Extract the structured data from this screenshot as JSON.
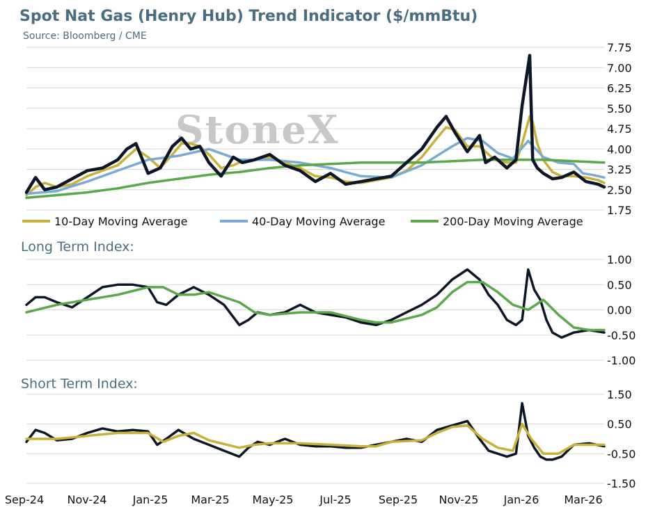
{
  "header": {
    "title": "Spot Nat Gas (Henry Hub) Trend Indicator ($/mmBtu)",
    "source": "Source: Bloomberg / CME",
    "watermark": "StoneX"
  },
  "colors": {
    "price": "#0d1626",
    "ma10": "#c8b03a",
    "ma40": "#7aaad2",
    "ma200": "#5aa84a",
    "grid": "#d9d9d9",
    "title": "#4a6d80"
  },
  "x_axis": {
    "labels": [
      "Sep-24",
      "Nov-24",
      "Jan-25",
      "Mar-25",
      "May-25",
      "Jul-25",
      "Sep-25",
      "Nov-25",
      "Jan-26",
      "Mar-26"
    ]
  },
  "chart_data": [
    {
      "type": "line",
      "title": "Spot Nat Gas (Henry Hub) Trend Indicator ($/mmBtu)",
      "ylim": [
        1.75,
        7.75
      ],
      "yticks": [
        "7.75",
        "7.00",
        "6.25",
        "5.50",
        "4.75",
        "4.00",
        "3.25",
        "2.50",
        "1.75"
      ],
      "x_labels": [
        "Sep-24",
        "Nov-24",
        "Jan-25",
        "Mar-25",
        "May-25",
        "Jul-25",
        "Sep-25",
        "Nov-25",
        "Jan-26",
        "Mar-26"
      ],
      "x_range": [
        0,
        19
      ],
      "legend": [
        "10-Day Moving Average",
        "40-Day Moving Average",
        "200-Day Moving Average"
      ],
      "series": [
        {
          "name": "",
          "color": "#0d1626",
          "width": 4.5,
          "x": [
            0,
            0.3,
            0.6,
            1,
            1.5,
            2,
            2.5,
            3,
            3.3,
            3.6,
            4,
            4.4,
            4.8,
            5.1,
            5.4,
            5.7,
            6,
            6.4,
            6.8,
            7.1,
            7.5,
            8,
            8.5,
            9,
            9.5,
            10,
            10.5,
            11,
            11.5,
            12,
            12.5,
            13,
            13.5,
            13.8,
            14.1,
            14.5,
            14.9,
            15.1,
            15.4,
            15.8,
            16.1,
            16.3,
            16.55,
            16.65,
            16.8,
            17,
            17.3,
            17.6,
            18,
            18.4,
            18.8,
            19
          ],
          "y": [
            2.4,
            2.95,
            2.5,
            2.6,
            2.9,
            3.2,
            3.3,
            3.6,
            4.0,
            4.2,
            3.1,
            3.3,
            4.1,
            4.4,
            4.0,
            4.1,
            3.5,
            3.0,
            3.7,
            3.5,
            3.6,
            3.8,
            3.4,
            3.2,
            2.8,
            3.1,
            2.7,
            2.8,
            2.9,
            3.0,
            3.5,
            4.0,
            4.8,
            5.2,
            4.6,
            3.9,
            4.5,
            3.5,
            3.7,
            3.3,
            3.6,
            5.6,
            7.45,
            3.6,
            3.3,
            3.1,
            2.9,
            2.95,
            3.15,
            2.8,
            2.7,
            2.6
          ]
        },
        {
          "name": "10-Day Moving Average",
          "color": "#c8b03a",
          "width": 3.5,
          "x": [
            0,
            0.3,
            0.6,
            1,
            1.5,
            2,
            2.5,
            3,
            3.3,
            3.6,
            4,
            4.4,
            4.8,
            5.1,
            5.4,
            5.7,
            6,
            6.4,
            6.8,
            7.1,
            7.5,
            8,
            8.5,
            9,
            9.5,
            10,
            10.5,
            11,
            11.5,
            12,
            12.5,
            13,
            13.5,
            13.8,
            14.1,
            14.5,
            14.9,
            15.1,
            15.4,
            15.8,
            16.1,
            16.3,
            16.55,
            16.65,
            16.8,
            17,
            17.3,
            17.6,
            18,
            18.4,
            18.8,
            19
          ],
          "y": [
            2.3,
            2.6,
            2.75,
            2.6,
            2.7,
            3.0,
            3.2,
            3.4,
            3.7,
            4.0,
            3.7,
            3.3,
            3.8,
            4.2,
            4.2,
            4.1,
            3.8,
            3.3,
            3.4,
            3.55,
            3.6,
            3.7,
            3.5,
            3.3,
            3.0,
            2.95,
            2.8,
            2.75,
            2.85,
            2.95,
            3.2,
            3.7,
            4.4,
            4.8,
            4.7,
            4.1,
            4.1,
            3.9,
            3.6,
            3.5,
            3.5,
            4.2,
            5.2,
            5.0,
            4.2,
            3.6,
            3.15,
            3.0,
            3.0,
            2.95,
            2.85,
            2.75
          ]
        },
        {
          "name": "40-Day Moving Average",
          "color": "#7aaad2",
          "width": 3.5,
          "x": [
            0,
            1,
            2,
            3,
            4,
            5,
            6,
            7,
            8,
            9,
            10,
            11,
            12,
            13,
            14,
            14.5,
            15,
            15.5,
            16,
            16.5,
            17,
            17.5,
            18,
            18.3,
            18.6,
            19
          ],
          "y": [
            2.35,
            2.45,
            2.8,
            3.2,
            3.6,
            3.75,
            4.0,
            3.6,
            3.6,
            3.5,
            3.3,
            3.0,
            2.95,
            3.4,
            4.1,
            4.4,
            4.3,
            3.85,
            3.65,
            4.3,
            3.7,
            3.5,
            3.45,
            3.1,
            3.05,
            2.95
          ]
        },
        {
          "name": "200-Day Moving Average",
          "color": "#5aa84a",
          "width": 3.5,
          "x": [
            0,
            1,
            2,
            3,
            4,
            5,
            6,
            7,
            8,
            9,
            10,
            11,
            12,
            13,
            14,
            15,
            16,
            17,
            18,
            19
          ],
          "y": [
            2.2,
            2.3,
            2.4,
            2.55,
            2.75,
            2.9,
            3.05,
            3.15,
            3.3,
            3.4,
            3.45,
            3.5,
            3.5,
            3.5,
            3.55,
            3.6,
            3.6,
            3.6,
            3.55,
            3.5
          ]
        }
      ]
    },
    {
      "type": "line",
      "title": "Long Term Index:",
      "ylim": [
        -1.0,
        1.0
      ],
      "yticks": [
        "1.00",
        "0.50",
        "0.00",
        "-0.50",
        "-1.00"
      ],
      "x_range": [
        0,
        19
      ],
      "series": [
        {
          "name": "",
          "color": "#0d1626",
          "width": 3.5,
          "x": [
            0,
            0.3,
            0.6,
            1,
            1.5,
            2,
            2.5,
            3,
            3.5,
            4,
            4.3,
            4.6,
            5,
            5.5,
            6,
            6.5,
            7,
            7.3,
            7.6,
            8,
            8.5,
            9,
            9.5,
            10,
            10.5,
            11,
            11.5,
            12,
            12.5,
            13,
            13.5,
            14,
            14.5,
            14.9,
            15.2,
            15.5,
            15.8,
            16.1,
            16.3,
            16.5,
            16.7,
            16.9,
            17.1,
            17.3,
            17.6,
            18,
            18.5,
            19
          ],
          "y": [
            0.1,
            0.25,
            0.25,
            0.15,
            0.05,
            0.25,
            0.45,
            0.5,
            0.5,
            0.45,
            0.15,
            0.1,
            0.3,
            0.45,
            0.3,
            0.1,
            -0.3,
            -0.2,
            -0.05,
            -0.1,
            -0.05,
            0.1,
            -0.05,
            -0.1,
            -0.15,
            -0.25,
            -0.3,
            -0.2,
            -0.05,
            0.1,
            0.3,
            0.6,
            0.8,
            0.6,
            0.3,
            0.1,
            -0.2,
            -0.3,
            -0.2,
            0.8,
            0.4,
            0.2,
            -0.2,
            -0.45,
            -0.55,
            -0.45,
            -0.4,
            -0.45
          ]
        },
        {
          "name": "",
          "color": "#5aa84a",
          "width": 3.5,
          "x": [
            0,
            1,
            2,
            3,
            4,
            4.5,
            5,
            5.5,
            6,
            7,
            7.5,
            8,
            9,
            10,
            11,
            11.5,
            12,
            13,
            13.5,
            14,
            14.5,
            15,
            15.5,
            16,
            16.5,
            17,
            17.5,
            18,
            18.5,
            19
          ],
          "y": [
            -0.05,
            0.1,
            0.2,
            0.3,
            0.45,
            0.45,
            0.3,
            0.3,
            0.35,
            0.15,
            -0.05,
            -0.1,
            -0.05,
            -0.05,
            -0.2,
            -0.25,
            -0.25,
            -0.1,
            0.05,
            0.35,
            0.55,
            0.55,
            0.35,
            0.1,
            0.0,
            0.2,
            -0.1,
            -0.35,
            -0.4,
            -0.4
          ]
        }
      ]
    },
    {
      "type": "line",
      "title": "Short Term Index:",
      "ylim": [
        -1.5,
        1.5
      ],
      "yticks": [
        "1.50",
        "0.50",
        "-0.50",
        "-1.50"
      ],
      "x_range": [
        0,
        19
      ],
      "series": [
        {
          "name": "",
          "color": "#0d1626",
          "width": 3.5,
          "x": [
            0,
            0.3,
            0.6,
            1,
            1.5,
            2,
            2.5,
            3,
            3.5,
            4,
            4.3,
            4.6,
            5,
            5.5,
            6,
            6.5,
            7,
            7.3,
            7.6,
            8,
            8.5,
            9,
            9.5,
            10,
            10.5,
            11,
            11.5,
            12,
            12.5,
            13,
            13.5,
            14,
            14.5,
            14.9,
            15.2,
            15.5,
            15.8,
            16.1,
            16.3,
            16.5,
            16.7,
            16.9,
            17.1,
            17.3,
            17.6,
            18,
            18.5,
            19
          ],
          "y": [
            -0.1,
            0.3,
            0.2,
            -0.05,
            0.0,
            0.2,
            0.35,
            0.25,
            0.3,
            0.25,
            -0.2,
            0.0,
            0.3,
            0.0,
            -0.2,
            -0.4,
            -0.6,
            -0.3,
            -0.1,
            -0.2,
            0.0,
            -0.2,
            -0.25,
            -0.25,
            -0.3,
            -0.3,
            -0.2,
            -0.1,
            0.0,
            -0.1,
            0.3,
            0.45,
            0.6,
            0.0,
            -0.4,
            -0.5,
            -0.6,
            -0.5,
            1.2,
            0.1,
            -0.3,
            -0.6,
            -0.7,
            -0.7,
            -0.6,
            -0.2,
            -0.15,
            -0.25
          ]
        },
        {
          "name": "",
          "color": "#c8b03a",
          "width": 3.5,
          "x": [
            0,
            1,
            2,
            3,
            4,
            4.5,
            5,
            5.5,
            6,
            7,
            7.5,
            8,
            9,
            10,
            11,
            11.5,
            12,
            13,
            13.5,
            14,
            14.5,
            15,
            15.5,
            16,
            16.3,
            16.6,
            17,
            17.5,
            18,
            18.5,
            19
          ],
          "y": [
            0.0,
            0.0,
            0.1,
            0.2,
            0.2,
            -0.1,
            0.1,
            0.2,
            -0.05,
            -0.3,
            -0.2,
            -0.15,
            -0.15,
            -0.2,
            -0.25,
            -0.25,
            -0.1,
            -0.05,
            0.2,
            0.4,
            0.45,
            0.0,
            -0.3,
            -0.4,
            0.5,
            0.0,
            -0.5,
            -0.5,
            -0.2,
            -0.2,
            -0.2
          ]
        }
      ]
    }
  ]
}
